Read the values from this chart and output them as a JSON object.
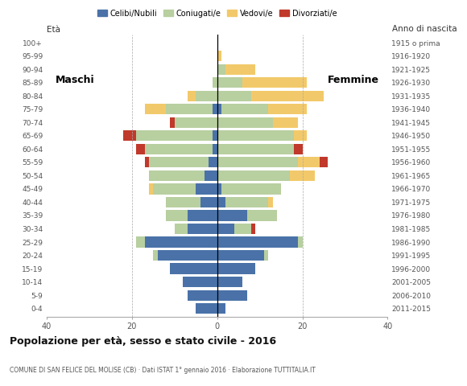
{
  "age_groups": [
    "0-4",
    "5-9",
    "10-14",
    "15-19",
    "20-24",
    "25-29",
    "30-34",
    "35-39",
    "40-44",
    "45-49",
    "50-54",
    "55-59",
    "60-64",
    "65-69",
    "70-74",
    "75-79",
    "80-84",
    "85-89",
    "90-94",
    "95-99",
    "100+"
  ],
  "birth_years": [
    "2011-2015",
    "2006-2010",
    "2001-2005",
    "1996-2000",
    "1991-1995",
    "1986-1990",
    "1981-1985",
    "1976-1980",
    "1971-1975",
    "1966-1970",
    "1961-1965",
    "1956-1960",
    "1951-1955",
    "1946-1950",
    "1941-1945",
    "1936-1940",
    "1931-1935",
    "1926-1930",
    "1921-1925",
    "1916-1920",
    "1915 o prima"
  ],
  "male": {
    "celibi": [
      5,
      7,
      8,
      11,
      14,
      17,
      7,
      7,
      4,
      5,
      3,
      2,
      1,
      1,
      0,
      1,
      0,
      0,
      0,
      0,
      0
    ],
    "coniugati": [
      0,
      0,
      0,
      0,
      1,
      2,
      3,
      5,
      8,
      10,
      13,
      14,
      16,
      18,
      10,
      11,
      5,
      1,
      0,
      0,
      0
    ],
    "vedovi": [
      0,
      0,
      0,
      0,
      0,
      0,
      0,
      0,
      0,
      1,
      0,
      0,
      0,
      0,
      0,
      5,
      2,
      0,
      0,
      0,
      0
    ],
    "divorziati": [
      0,
      0,
      0,
      0,
      0,
      0,
      0,
      0,
      0,
      0,
      0,
      1,
      2,
      3,
      1,
      0,
      0,
      0,
      0,
      0,
      0
    ]
  },
  "female": {
    "nubili": [
      2,
      7,
      6,
      9,
      11,
      19,
      4,
      7,
      2,
      1,
      0,
      0,
      0,
      0,
      0,
      1,
      0,
      0,
      0,
      0,
      0
    ],
    "coniugate": [
      0,
      0,
      0,
      0,
      1,
      1,
      4,
      7,
      10,
      14,
      17,
      19,
      18,
      18,
      13,
      11,
      8,
      6,
      2,
      0,
      0
    ],
    "vedove": [
      0,
      0,
      0,
      0,
      0,
      0,
      0,
      0,
      1,
      0,
      6,
      5,
      0,
      3,
      6,
      9,
      17,
      15,
      7,
      1,
      0
    ],
    "divorziate": [
      0,
      0,
      0,
      0,
      0,
      0,
      1,
      0,
      0,
      0,
      0,
      2,
      2,
      0,
      0,
      0,
      0,
      0,
      0,
      0,
      0
    ]
  },
  "colors": {
    "celibi": "#4a72a8",
    "coniugati": "#b8cfa0",
    "vedovi": "#f2c96a",
    "divorziati": "#c0392b"
  },
  "title": "Popolazione per età, sesso e stato civile - 2016",
  "subtitle": "COMUNE DI SAN FELICE DEL MOLISE (CB) · Dati ISTAT 1° gennaio 2016 · Elaborazione TUTTITALIA.IT",
  "label_maschi": "Maschi",
  "label_femmine": "Femmine",
  "label_eta": "Età",
  "label_anno": "Anno di nascita",
  "xlim": 40,
  "legend_labels": [
    "Celibi/Nubili",
    "Coniugati/e",
    "Vedovi/e",
    "Divorziati/e"
  ],
  "background_color": "#ffffff"
}
